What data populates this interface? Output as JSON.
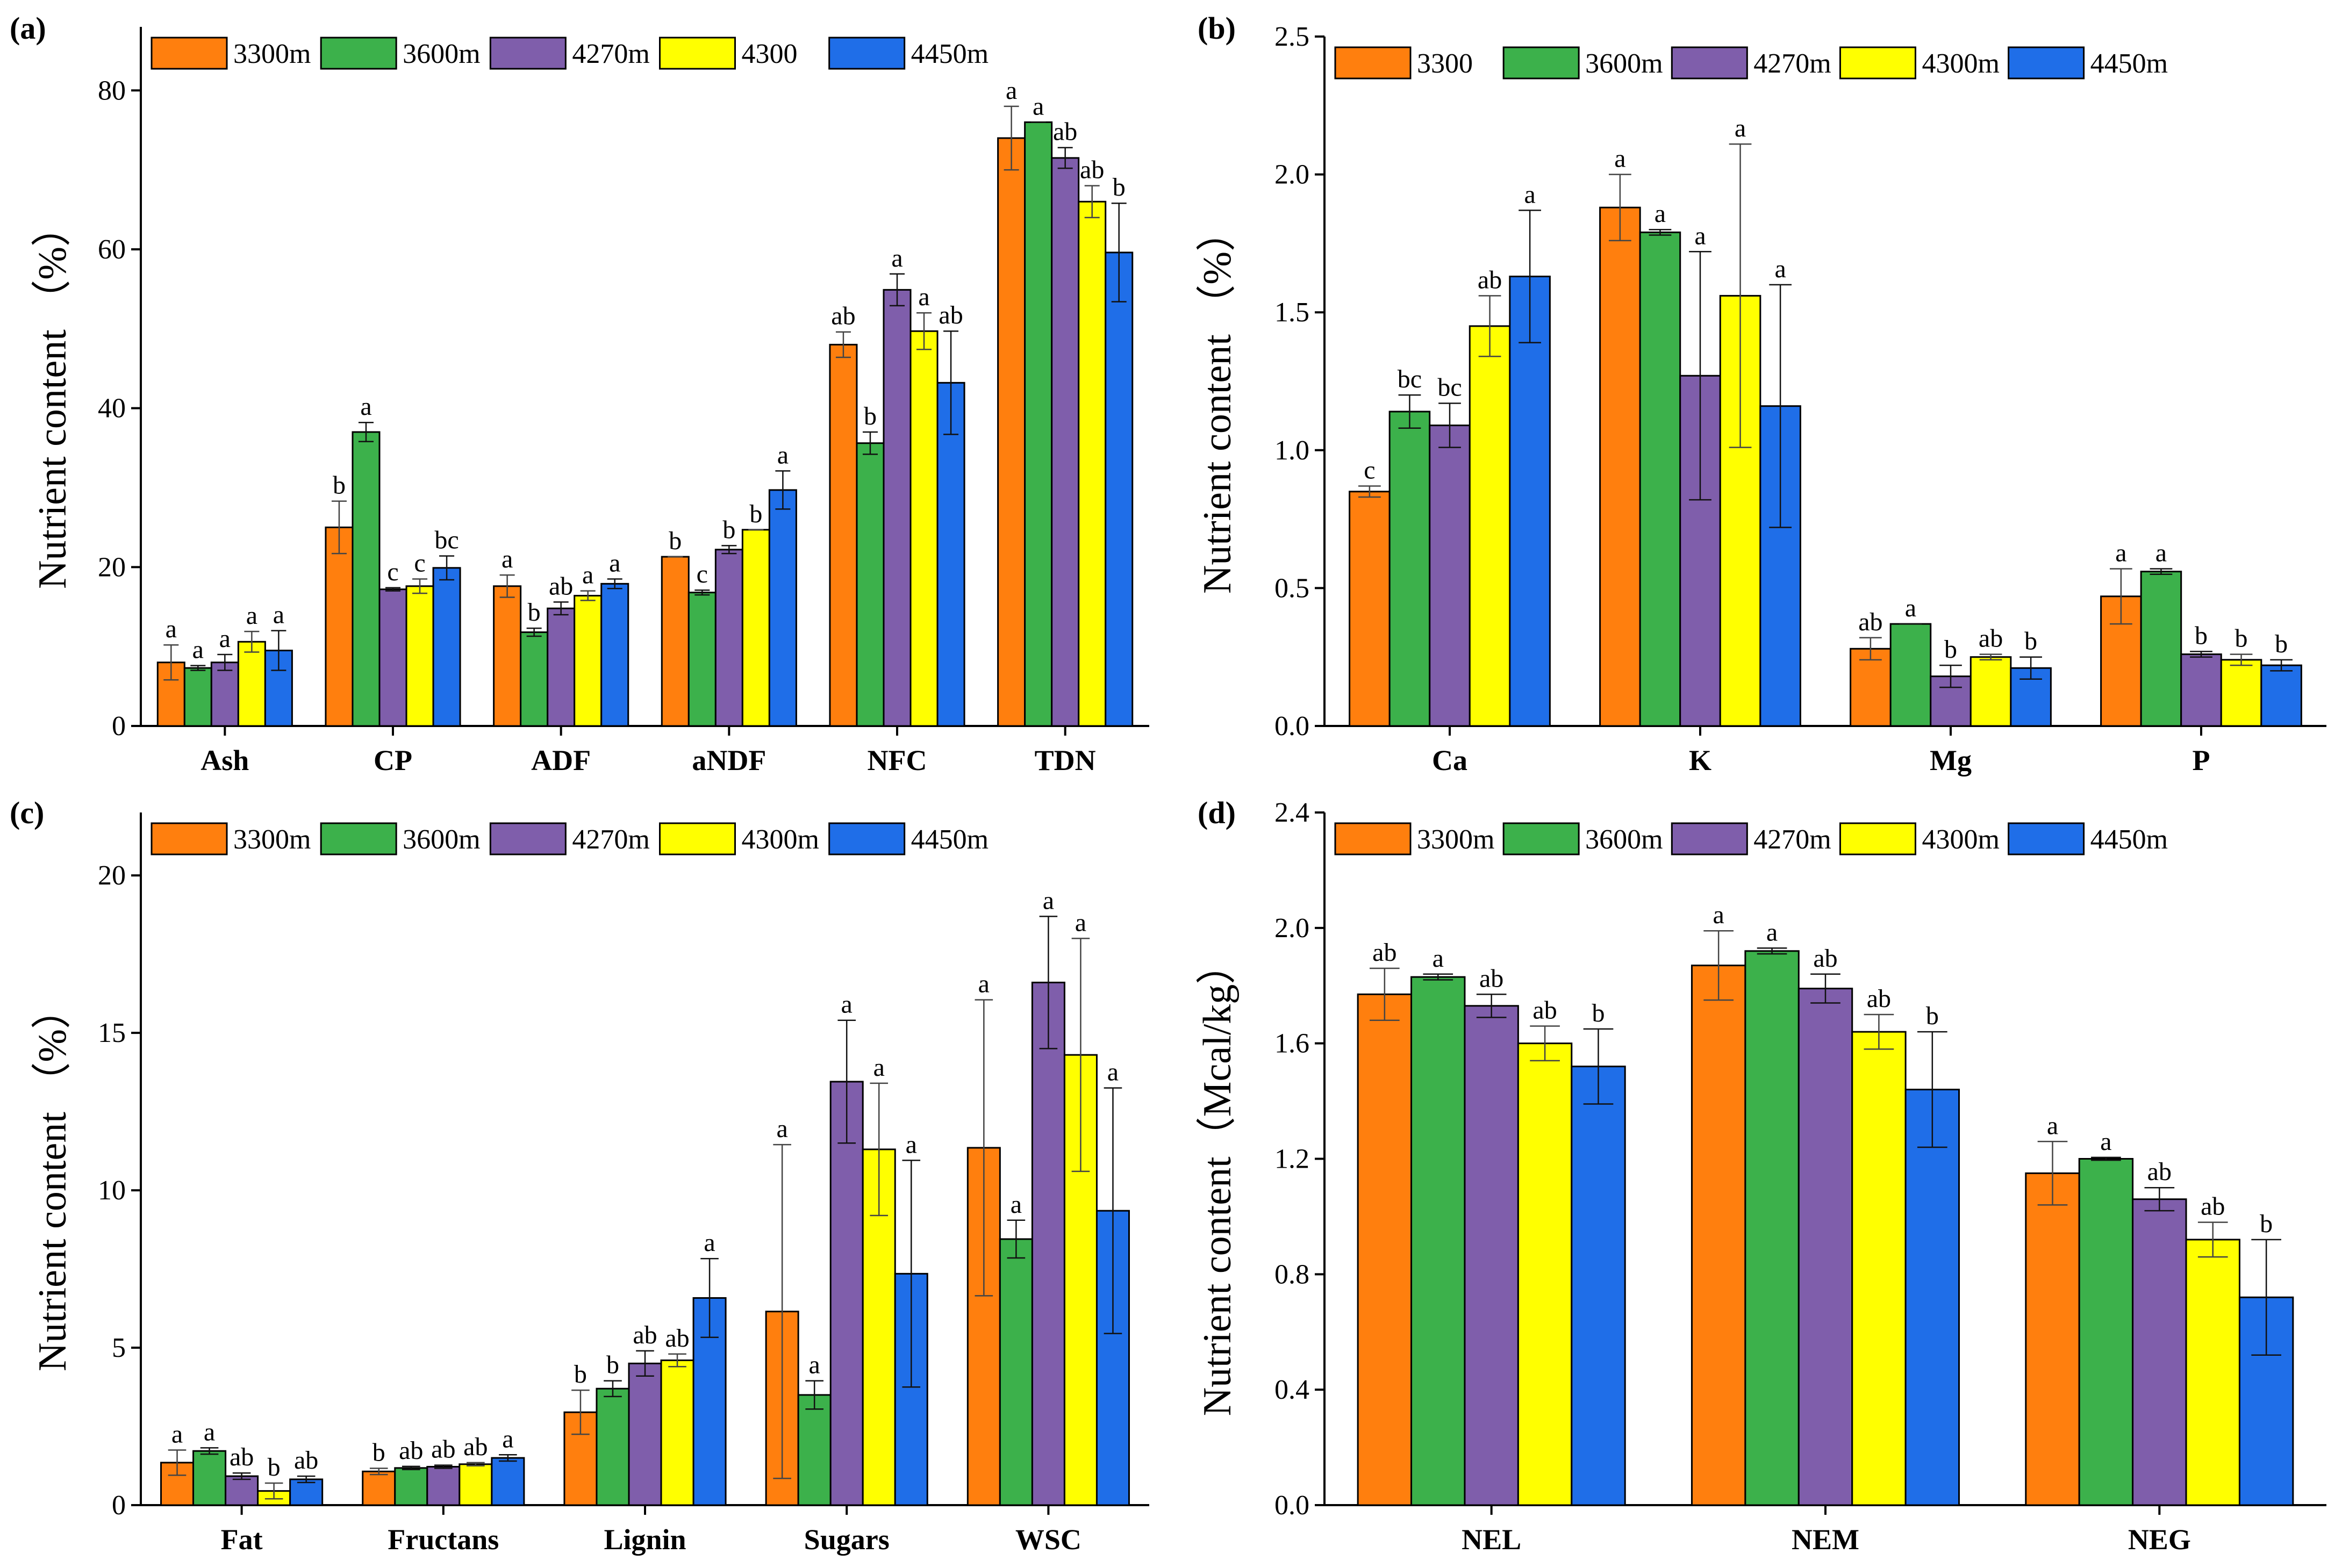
{
  "colors": {
    "c3300": "#ff7f0e",
    "c3600": "#3cb14b",
    "c4270": "#7f5eab",
    "c4300": "#ffff00",
    "c4450": "#1f6ee8"
  },
  "chart_data": [
    {
      "type": "bar",
      "panel": "(a)",
      "ylabel": "Nutrient content （%）",
      "ylim": [
        0,
        88
      ],
      "yticks": [
        0,
        20,
        40,
        60,
        80
      ],
      "categories": [
        "Ash",
        "CP",
        "ADF",
        "aNDF",
        "NFC",
        "TDN"
      ],
      "legend": [
        "3300m",
        "3600m",
        "4270m",
        "4300",
        "4450m"
      ],
      "series": [
        {
          "name": "3300m",
          "values": [
            8.0,
            25.0,
            17.6,
            21.3,
            48.0,
            74.0
          ],
          "errors": [
            2.2,
            3.3,
            1.4,
            0.0,
            1.6,
            4.0
          ],
          "labels": [
            "a",
            "b",
            "a",
            "b",
            "ab",
            "a"
          ]
        },
        {
          "name": "3600m",
          "values": [
            7.3,
            37.0,
            11.8,
            16.8,
            35.6,
            76.0
          ],
          "errors": [
            0.3,
            1.2,
            0.5,
            0.3,
            1.4,
            0.0
          ],
          "labels": [
            "a",
            "a",
            "b",
            "c",
            "b",
            "a"
          ]
        },
        {
          "name": "4270m",
          "values": [
            8.0,
            17.2,
            14.8,
            22.2,
            54.9,
            71.5
          ],
          "errors": [
            1.0,
            0.2,
            0.8,
            0.5,
            2.0,
            1.3
          ],
          "labels": [
            "a",
            "c",
            "ab",
            "b",
            "a",
            "ab"
          ]
        },
        {
          "name": "4300",
          "values": [
            10.6,
            17.6,
            16.4,
            24.7,
            49.7,
            66.0
          ],
          "errors": [
            1.3,
            0.9,
            0.6,
            0.0,
            2.3,
            2.0
          ],
          "labels": [
            "a",
            "c",
            "a",
            "b",
            "a",
            "ab"
          ]
        },
        {
          "name": "4450m",
          "values": [
            9.5,
            19.9,
            17.9,
            29.7,
            43.2,
            59.6
          ],
          "errors": [
            2.5,
            1.5,
            0.6,
            2.4,
            6.5,
            6.2
          ],
          "labels": [
            "a",
            "bc",
            "a",
            "a",
            "ab",
            "b"
          ]
        }
      ]
    },
    {
      "type": "bar",
      "panel": "(b)",
      "ylabel": "Nutrient content （%）",
      "ylim": [
        0,
        2.5
      ],
      "yticks": [
        0.0,
        0.5,
        1.0,
        1.5,
        2.0,
        2.5
      ],
      "categories": [
        "Ca",
        "K",
        "Mg",
        "P"
      ],
      "legend": [
        "3300",
        "3600m",
        "4270m",
        "4300m",
        "4450m"
      ],
      "series": [
        {
          "name": "3300",
          "values": [
            0.85,
            1.88,
            0.28,
            0.47
          ],
          "errors": [
            0.02,
            0.12,
            0.04,
            0.1
          ],
          "labels": [
            "c",
            "a",
            "ab",
            "a"
          ]
        },
        {
          "name": "3600m",
          "values": [
            1.14,
            1.79,
            0.37,
            0.56
          ],
          "errors": [
            0.06,
            0.01,
            0.0,
            0.01
          ],
          "labels": [
            "bc",
            "a",
            "a",
            "a"
          ]
        },
        {
          "name": "4270m",
          "values": [
            1.09,
            1.27,
            0.18,
            0.26
          ],
          "errors": [
            0.08,
            0.45,
            0.04,
            0.01
          ],
          "labels": [
            "bc",
            "a",
            "b",
            "b"
          ]
        },
        {
          "name": "4300m",
          "values": [
            1.45,
            1.56,
            0.25,
            0.24
          ],
          "errors": [
            0.11,
            0.55,
            0.01,
            0.02
          ],
          "labels": [
            "ab",
            "a",
            "ab",
            "b"
          ]
        },
        {
          "name": "4450m",
          "values": [
            1.63,
            1.16,
            0.21,
            0.22
          ],
          "errors": [
            0.24,
            0.44,
            0.04,
            0.02
          ],
          "labels": [
            "a",
            "a",
            "b",
            "b"
          ]
        }
      ]
    },
    {
      "type": "bar",
      "panel": "(c)",
      "ylabel": "Nutrient content （%）",
      "ylim": [
        0,
        22
      ],
      "yticks": [
        0,
        5,
        10,
        15,
        20
      ],
      "categories": [
        "Fat",
        "Fructans",
        "Lignin",
        "Sugars",
        "WSC"
      ],
      "legend": [
        "3300m",
        "3600m",
        "4270m",
        "4300m",
        "4450m"
      ],
      "series": [
        {
          "name": "3300m",
          "values": [
            1.35,
            1.07,
            2.95,
            6.15,
            11.35
          ],
          "errors": [
            0.4,
            0.1,
            0.7,
            5.3,
            4.7
          ],
          "labels": [
            "a",
            "b",
            "b",
            "a",
            "a"
          ]
        },
        {
          "name": "3600m",
          "values": [
            1.72,
            1.18,
            3.7,
            3.5,
            8.45
          ],
          "errors": [
            0.1,
            0.05,
            0.25,
            0.45,
            0.6
          ],
          "labels": [
            "a",
            "ab",
            "b",
            "a",
            "a"
          ]
        },
        {
          "name": "4270m",
          "values": [
            0.92,
            1.22,
            4.5,
            13.45,
            16.6
          ],
          "errors": [
            0.1,
            0.05,
            0.4,
            1.95,
            2.1
          ],
          "labels": [
            "ab",
            "ab",
            "ab",
            "a",
            "a"
          ]
        },
        {
          "name": "4300m",
          "values": [
            0.45,
            1.3,
            4.6,
            11.3,
            14.3
          ],
          "errors": [
            0.25,
            0.05,
            0.2,
            2.1,
            3.7
          ],
          "labels": [
            "b",
            "ab",
            "ab",
            "a",
            "a"
          ]
        },
        {
          "name": "4450m",
          "values": [
            0.82,
            1.5,
            6.58,
            7.35,
            9.35
          ],
          "errors": [
            0.1,
            0.1,
            1.25,
            3.6,
            3.9
          ],
          "labels": [
            "ab",
            "a",
            "a",
            "a",
            "a"
          ]
        }
      ]
    },
    {
      "type": "bar",
      "panel": "(d)",
      "ylabel": "Nutrient content（Mcal/kg）",
      "ylim": [
        0,
        2.4
      ],
      "yticks": [
        0.0,
        0.4,
        0.8,
        1.2,
        1.6,
        2.0,
        2.4
      ],
      "categories": [
        "NEL",
        "NEM",
        "NEG"
      ],
      "legend": [
        "3300m",
        "3600m",
        "4270m",
        "4300m",
        "4450m"
      ],
      "series": [
        {
          "name": "3300m",
          "values": [
            1.77,
            1.87,
            1.15
          ],
          "errors": [
            0.09,
            0.12,
            0.11
          ],
          "labels": [
            "ab",
            "a",
            "a"
          ]
        },
        {
          "name": "3600m",
          "values": [
            1.83,
            1.92,
            1.2
          ],
          "errors": [
            0.01,
            0.01,
            0.005
          ],
          "labels": [
            "a",
            "a",
            "a"
          ]
        },
        {
          "name": "4270m",
          "values": [
            1.73,
            1.79,
            1.06
          ],
          "errors": [
            0.04,
            0.05,
            0.04
          ],
          "labels": [
            "ab",
            "ab",
            "ab"
          ]
        },
        {
          "name": "4300m",
          "values": [
            1.6,
            1.64,
            0.92
          ],
          "errors": [
            0.06,
            0.06,
            0.06
          ],
          "labels": [
            "ab",
            "ab",
            "ab"
          ]
        },
        {
          "name": "4450m",
          "values": [
            1.52,
            1.44,
            0.72
          ],
          "errors": [
            0.13,
            0.2,
            0.2
          ],
          "labels": [
            "b",
            "b",
            "b"
          ]
        }
      ]
    }
  ]
}
